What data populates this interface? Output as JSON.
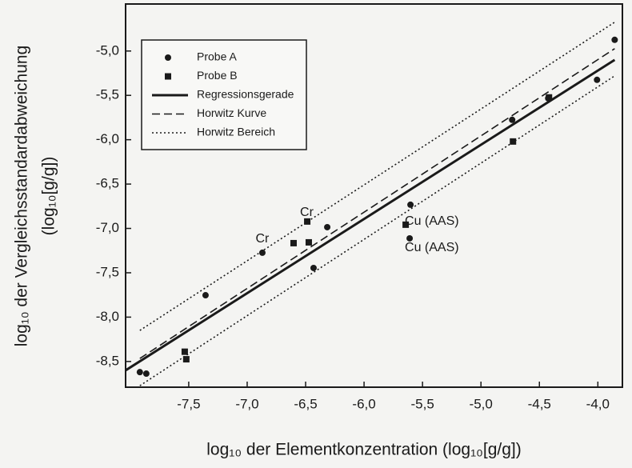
{
  "chart_data": {
    "type": "scatter",
    "xlabel": "log₁₀ der Elementkonzentration (log₁₀[g/g])",
    "ylabel": [
      "log₁₀ der Vergleichsstandardabweichung",
      "(log₁₀[g/g])"
    ],
    "xlim": [
      -8.04,
      -3.79
    ],
    "ylim": [
      -8.79,
      -4.47
    ],
    "xticks": [
      {
        "value": -7.5,
        "label": "-7,5"
      },
      {
        "value": -7.0,
        "label": "-7,0"
      },
      {
        "value": -6.5,
        "label": "-6,5"
      },
      {
        "value": -6.0,
        "label": "-6,0"
      },
      {
        "value": -5.5,
        "label": "-5,5"
      },
      {
        "value": -5.0,
        "label": "-5,0"
      },
      {
        "value": -4.5,
        "label": "-4,5"
      },
      {
        "value": -4.0,
        "label": "-4,0"
      }
    ],
    "yticks": [
      {
        "value": -5.0,
        "label": "-5,0"
      },
      {
        "value": -5.5,
        "label": "-5,5"
      },
      {
        "value": -6.0,
        "label": "-6,0"
      },
      {
        "value": -6.5,
        "label": "-6,5"
      },
      {
        "value": -7.0,
        "label": "-7,0"
      },
      {
        "value": -7.5,
        "label": "-7,5"
      },
      {
        "value": -8.0,
        "label": "-8,0"
      },
      {
        "value": -8.5,
        "label": "-8,5"
      }
    ],
    "legend": "upper left",
    "series": [
      {
        "name": "Probe A",
        "style": "circle",
        "color": "#1a1a1a",
        "x": [
          -7.918,
          -7.863,
          -7.356,
          -6.87,
          -6.432,
          -6.315,
          -5.603,
          -5.61,
          -4.733,
          -4.425,
          -4.007,
          -3.856
        ],
        "values": [
          -8.62,
          -8.637,
          -7.753,
          -7.274,
          -7.446,
          -6.986,
          -6.733,
          -7.112,
          -5.776,
          -5.532,
          -5.325,
          -4.874
        ]
      },
      {
        "name": "Probe B",
        "style": "square",
        "color": "#1a1a1a",
        "x": [
          -7.534,
          -7.521,
          -6.603,
          -6.486,
          -6.473,
          -5.644,
          -4.726,
          -4.418
        ],
        "values": [
          -8.39,
          -8.475,
          -7.166,
          -6.922,
          -7.157,
          -6.958,
          -6.02,
          -5.523
        ]
      },
      {
        "name": "Regressionsgerade",
        "style": "solid",
        "color": "#1a1a1a",
        "x": [
          -8.04,
          -3.856
        ],
        "values": [
          -8.6,
          -5.1
        ]
      },
      {
        "name": "Horwitz Kurve",
        "style": "dashed",
        "color": "#1a1a1a",
        "x": [
          -7.918,
          -3.856
        ],
        "values": [
          -8.466,
          -4.973
        ]
      },
      {
        "name": "Horwitz Bereich",
        "style": "dotted",
        "color": "#1a1a1a",
        "x": [
          -7.918,
          -3.856,
          null,
          -7.918,
          -3.856
        ],
        "values": [
          -8.15,
          -4.675,
          null,
          -8.773,
          -5.28
        ]
      }
    ],
    "annotations": [
      {
        "text": "Cr",
        "x": -6.87,
        "y": -7.12
      },
      {
        "text": "Cr",
        "x": -6.49,
        "y": -6.82
      },
      {
        "text": "Cu (AAS)",
        "x": -5.42,
        "y": -6.92
      },
      {
        "text": "Cu (AAS)",
        "x": -5.42,
        "y": -7.22
      }
    ]
  }
}
